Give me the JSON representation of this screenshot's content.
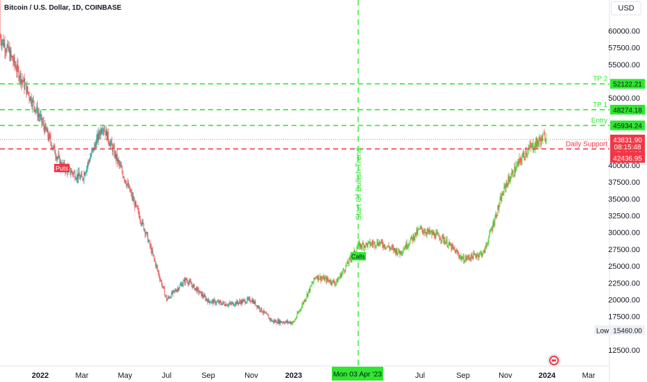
{
  "header": {
    "title": "Bitcoin / U.S. Dollar, 1D, COINBASE",
    "currency": "USD"
  },
  "colors": {
    "up": "#26a69a",
    "up_alt": "#4cd137",
    "down": "#ef5350",
    "level_green": "#2ee82e",
    "level_red": "#f23645",
    "text": "#131722"
  },
  "chart_data": {
    "type": "candlestick",
    "x": [
      "2021-11",
      "2021-12",
      "2022-01",
      "2022-02",
      "2022-03",
      "2022-04",
      "2022-05",
      "2022-06",
      "2022-07",
      "2022-08",
      "2022-09",
      "2022-10",
      "2022-11",
      "2022-12",
      "2023-01",
      "2023-02",
      "2023-03",
      "2023-04",
      "2023-05",
      "2023-06",
      "2023-07",
      "2023-08",
      "2023-09",
      "2023-10",
      "2023-11",
      "2023-12",
      "2024-01"
    ],
    "y": [
      64000,
      57000,
      47000,
      40000,
      38000,
      46000,
      38000,
      30000,
      20000,
      23000,
      19800,
      19300,
      20000,
      16800,
      16600,
      23500,
      22500,
      28000,
      28500,
      27000,
      30500,
      29200,
      26000,
      27000,
      37000,
      42000,
      44500
    ],
    "xlim": [
      "2021-11",
      "2024-03"
    ],
    "ylim": [
      11000,
      64000
    ],
    "xticks": [
      "2022",
      "Mar",
      "May",
      "Jul",
      "Sep",
      "Nov",
      "2023",
      "Jul",
      "Sep",
      "Nov",
      "2024",
      "Mar"
    ],
    "yticks": [
      "60000.00",
      "57500.00",
      "55000.00",
      "52500.00",
      "50000.00",
      "47500.00",
      "45000.00",
      "42500.00",
      "40000.00",
      "37500.00",
      "35000.00",
      "32500.00",
      "30000.00",
      "27500.00",
      "25000.00",
      "22500.00",
      "20000.00",
      "17500.00",
      "12500.00"
    ],
    "levels": [
      {
        "label": "TP 2",
        "price": "52122.21",
        "style": "green-dashed"
      },
      {
        "label": "TP 1",
        "price": "48274.18",
        "style": "green-dashed"
      },
      {
        "label": "Entry",
        "price": "45934.24",
        "style": "green-dashed"
      },
      {
        "label": "Daily Support",
        "price": "42436.95",
        "style": "red-dashed"
      }
    ],
    "last_price": {
      "price": "43831.90",
      "countdown": "08:15:48"
    },
    "low_marker": {
      "label": "Low",
      "price": "15460.00"
    },
    "vertical_annotation": {
      "label": "Start Of Bullish Trend",
      "date_label": "Mon 03 Apr '23"
    },
    "markers": [
      {
        "label": "Puts",
        "at": "2022-01"
      },
      {
        "label": "Calls",
        "at": "2023-03"
      }
    ],
    "grid": false
  }
}
